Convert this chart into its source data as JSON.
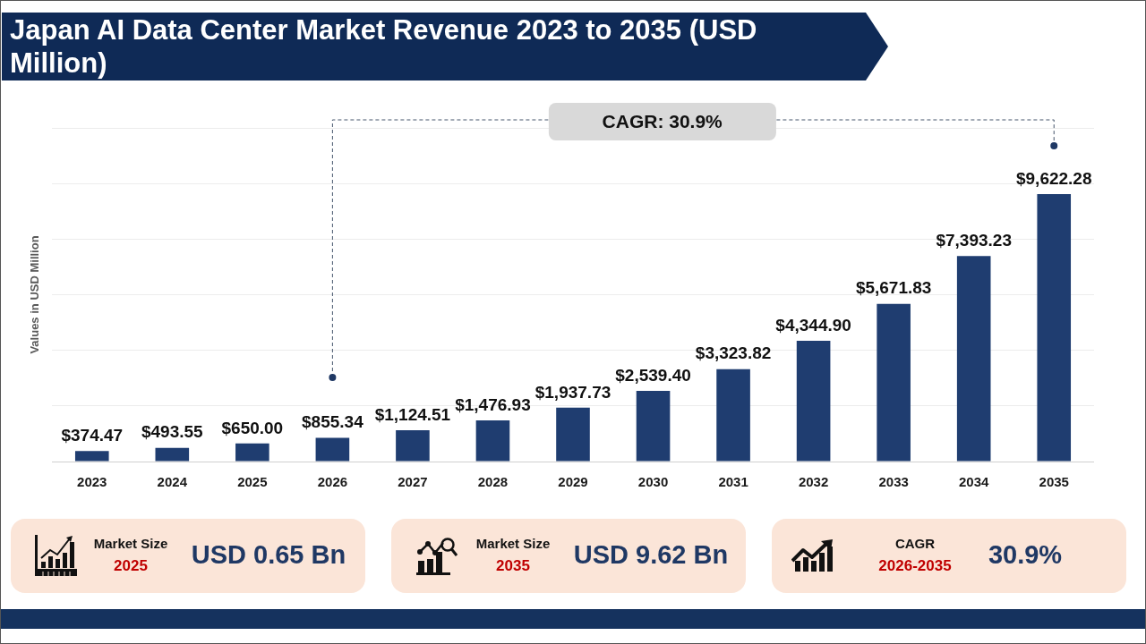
{
  "chart_data": [
    {
      "type": "bar",
      "title": "Japan AI Data Center Market Revenue 2023 to 2035 (USD Million)",
      "ylabel": "Values in USD Million",
      "categories": [
        "2023",
        "2024",
        "2025",
        "2026",
        "2027",
        "2028",
        "2029",
        "2030",
        "2031",
        "2032",
        "2033",
        "2034",
        "2035"
      ],
      "values": [
        374.47,
        493.55,
        650.0,
        855.34,
        1124.51,
        1476.93,
        1937.73,
        2539.4,
        3323.82,
        4344.9,
        5671.83,
        7393.23,
        9622.28
      ],
      "value_labels": [
        "$374.47",
        "$493.55",
        "$650.00",
        "$855.34",
        "$1,124.51",
        "$1,476.93",
        "$1,937.73",
        "$2,539.40",
        "$3,323.82",
        "$4,344.90",
        "$5,671.83",
        "$7,393.23",
        "$9,622.28"
      ],
      "color": "#1f3d70",
      "ylim": [
        0,
        12000
      ],
      "yticks": [
        {
          "value": 0,
          "label": null
        },
        {
          "value": 2000,
          "label": null
        },
        {
          "value": 4000,
          "label": null
        },
        {
          "value": 6000,
          "label": null
        },
        {
          "value": 8000,
          "label": null
        },
        {
          "value": 10000,
          "label": null
        },
        {
          "value": 12000,
          "label": null
        }
      ],
      "grid": "y",
      "tick_labels": "x",
      "annotations": [
        "CAGR: 30.9%"
      ]
    },
    {
      "type": "other",
      "title": "Market Size",
      "subtitle": "2025",
      "annotations": [
        "USD 0.65 Bn"
      ]
    },
    {
      "type": "other",
      "title": "Market Size",
      "subtitle": "2035",
      "annotations": [
        "USD 9.62 Bn"
      ]
    },
    {
      "type": "other",
      "title": "CAGR",
      "subtitle": "2026-2035",
      "annotations": [
        "30.9%"
      ]
    }
  ]
}
